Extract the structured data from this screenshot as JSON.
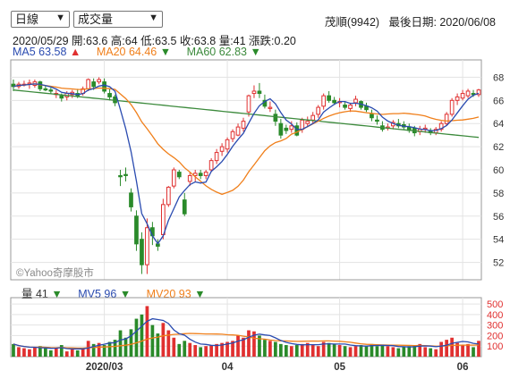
{
  "controls": {
    "period_select": "日線",
    "indicator_select": "成交量"
  },
  "header": {
    "stock": "茂順(9942)",
    "last_date_label": "最後日期: 2020/06/08",
    "quote": "2020/05/29  開:63.6  高:64  低:63.5  收:63.8  量:41  漲跌:0.20"
  },
  "ma_legend": [
    {
      "label": "MA5 63.58",
      "arrow": "▲",
      "color": "#2a4bb0",
      "arrow_color": "#e03030"
    },
    {
      "label": "MA20 64.46",
      "arrow": "▼",
      "color": "#f07f1a",
      "arrow_color": "#2a8a2a"
    },
    {
      "label": "MA60 62.83",
      "arrow": "▼",
      "color": "#3c8a3c",
      "arrow_color": "#2a8a2a"
    }
  ],
  "vol_legend": [
    {
      "label": "量 41",
      "arrow": "▼",
      "color": "#333333",
      "arrow_color": "#2a8a2a"
    },
    {
      "label": "MV5 96",
      "arrow": "▼",
      "color": "#2a4bb0",
      "arrow_color": "#2a8a2a"
    },
    {
      "label": "MV20 93",
      "arrow": "▼",
      "color": "#f07f1a",
      "arrow_color": "#2a8a2a"
    }
  ],
  "watermark": "©Yahoo奇摩股市",
  "colors": {
    "up": "#e03030",
    "down": "#2a8a2a",
    "ma5": "#2a4bb0",
    "ma20": "#f07f1a",
    "ma60": "#3c8a3c"
  },
  "chart_data": {
    "type": "candlestick",
    "price_yticks": [
      52,
      54,
      56,
      58,
      60,
      62,
      64,
      66,
      68
    ],
    "price_ylim": [
      50.5,
      69.5
    ],
    "volume_yticks": [
      100,
      200,
      300,
      400,
      500
    ],
    "volume_ylim": [
      0,
      560
    ],
    "x_labels": [
      {
        "label": "2020/03",
        "index": 17
      },
      {
        "label": "04",
        "index": 40
      },
      {
        "label": "05",
        "index": 61
      },
      {
        "label": "06",
        "index": 84
      }
    ],
    "candles": [
      [
        67.4,
        67.8,
        66.8,
        67.2,
        120
      ],
      [
        67.2,
        67.6,
        67.0,
        67.4,
        90
      ],
      [
        67.4,
        67.7,
        67.2,
        67.4,
        80
      ],
      [
        67.4,
        67.8,
        67.0,
        67.5,
        70
      ],
      [
        67.3,
        67.8,
        67.1,
        67.6,
        85
      ],
      [
        67.6,
        67.7,
        66.8,
        67.0,
        100
      ],
      [
        67.0,
        67.3,
        66.8,
        66.9,
        80
      ],
      [
        66.9,
        67.1,
        66.6,
        66.8,
        60
      ],
      [
        66.5,
        66.9,
        66.2,
        66.6,
        80
      ],
      [
        66.4,
        66.6,
        65.9,
        66.2,
        110
      ],
      [
        66.3,
        66.8,
        66.0,
        66.6,
        50
      ],
      [
        66.5,
        66.9,
        66.2,
        66.7,
        70
      ],
      [
        66.6,
        67.0,
        66.2,
        66.4,
        60
      ],
      [
        66.6,
        67.2,
        66.4,
        67.0,
        80
      ],
      [
        67.0,
        67.9,
        66.8,
        67.8,
        150
      ],
      [
        67.6,
        67.9,
        66.9,
        67.2,
        120
      ],
      [
        67.6,
        68.0,
        67.4,
        67.8,
        130
      ],
      [
        67.6,
        67.9,
        66.6,
        66.8,
        110
      ],
      [
        66.6,
        67.0,
        66.0,
        66.3,
        140
      ],
      [
        66.3,
        66.5,
        65.5,
        65.8,
        160
      ],
      [
        59.5,
        60.0,
        58.6,
        59.4,
        250
      ],
      [
        59.6,
        60.2,
        59.0,
        59.5,
        180
      ],
      [
        58.0,
        58.4,
        56.4,
        56.8,
        260
      ],
      [
        56.0,
        56.5,
        53.0,
        53.6,
        360
      ],
      [
        54.0,
        54.6,
        51.0,
        51.8,
        400
      ],
      [
        51.8,
        55.8,
        51.0,
        55.0,
        480
      ],
      [
        55.0,
        55.5,
        53.5,
        54.3,
        300
      ],
      [
        53.6,
        54.0,
        53.0,
        53.4,
        220
      ],
      [
        54.4,
        57.5,
        54.0,
        57.0,
        320
      ],
      [
        57.0,
        58.6,
        56.8,
        58.5,
        250
      ],
      [
        58.6,
        60.2,
        58.4,
        60.0,
        180
      ],
      [
        59.8,
        60.0,
        59.2,
        59.4,
        120
      ],
      [
        57.4,
        58.0,
        56.0,
        56.2,
        150
      ],
      [
        59.0,
        59.8,
        58.6,
        59.5,
        130
      ],
      [
        59.5,
        60.0,
        59.0,
        59.7,
        110
      ],
      [
        59.7,
        60.0,
        59.2,
        59.5,
        90
      ],
      [
        59.5,
        60.0,
        59.2,
        59.8,
        100
      ],
      [
        60.0,
        61.0,
        59.8,
        60.8,
        110
      ],
      [
        60.8,
        61.8,
        60.5,
        61.5,
        120
      ],
      [
        61.6,
        62.3,
        61.2,
        62.0,
        130
      ],
      [
        61.8,
        62.8,
        61.5,
        62.6,
        140
      ],
      [
        62.7,
        63.5,
        62.4,
        63.3,
        150
      ],
      [
        63.0,
        64.0,
        62.9,
        63.7,
        200
      ],
      [
        63.6,
        64.5,
        63.3,
        64.2,
        180
      ],
      [
        65.0,
        66.5,
        64.6,
        66.4,
        250
      ],
      [
        66.6,
        67.3,
        66.2,
        66.8,
        240
      ],
      [
        66.8,
        67.5,
        66.2,
        66.6,
        200
      ],
      [
        66.0,
        66.5,
        65.3,
        65.5,
        160
      ],
      [
        65.3,
        65.9,
        65.0,
        65.4,
        150
      ],
      [
        64.8,
        65.2,
        63.8,
        64.2,
        140
      ],
      [
        64.0,
        64.4,
        62.7,
        63.0,
        120
      ],
      [
        63.6,
        63.9,
        63.1,
        63.4,
        110
      ],
      [
        63.5,
        64.2,
        63.2,
        63.8,
        100
      ],
      [
        63.8,
        64.1,
        62.9,
        63.0,
        110
      ],
      [
        63.5,
        64.5,
        63.2,
        64.3,
        120
      ],
      [
        64.0,
        64.6,
        63.7,
        64.2,
        130
      ],
      [
        64.3,
        65.0,
        64.0,
        64.7,
        110
      ],
      [
        64.8,
        65.6,
        64.5,
        65.4,
        100
      ],
      [
        65.5,
        66.6,
        65.2,
        66.4,
        140
      ],
      [
        66.4,
        66.8,
        65.8,
        66.0,
        130
      ],
      [
        66.0,
        66.3,
        65.6,
        65.8,
        120
      ],
      [
        65.8,
        66.2,
        65.4,
        65.9,
        110
      ],
      [
        65.6,
        65.9,
        65.2,
        65.4,
        100
      ],
      [
        65.3,
        65.8,
        65.0,
        65.6,
        90
      ],
      [
        65.8,
        66.4,
        65.5,
        66.1,
        100
      ],
      [
        65.9,
        66.0,
        65.2,
        65.4,
        110
      ],
      [
        65.5,
        65.8,
        65.0,
        65.2,
        100
      ],
      [
        64.8,
        65.2,
        64.2,
        64.5,
        120
      ],
      [
        64.3,
        64.7,
        63.9,
        64.2,
        100
      ],
      [
        63.8,
        64.2,
        63.3,
        63.5,
        110
      ],
      [
        63.6,
        64.0,
        63.4,
        63.7,
        100
      ],
      [
        63.8,
        64.3,
        63.5,
        64.1,
        90
      ],
      [
        64.0,
        64.4,
        63.6,
        63.8,
        80
      ],
      [
        63.9,
        64.2,
        63.5,
        63.7,
        90
      ],
      [
        63.7,
        64.0,
        63.2,
        63.4,
        100
      ],
      [
        63.6,
        63.8,
        62.9,
        63.2,
        110
      ],
      [
        63.3,
        63.8,
        63.0,
        63.5,
        120
      ],
      [
        63.5,
        63.9,
        63.2,
        63.6,
        90
      ],
      [
        63.4,
        63.6,
        63.0,
        63.2,
        80
      ],
      [
        63.2,
        63.7,
        63.0,
        63.5,
        70
      ],
      [
        63.5,
        64.2,
        63.3,
        64.0,
        140
      ],
      [
        64.0,
        65.0,
        63.8,
        64.8,
        160
      ],
      [
        64.8,
        66.2,
        64.6,
        66.0,
        180
      ],
      [
        66.0,
        66.6,
        65.6,
        66.3,
        130
      ],
      [
        66.2,
        66.9,
        66.0,
        66.6,
        110
      ],
      [
        66.4,
        67.0,
        66.2,
        66.8,
        120
      ],
      [
        66.6,
        66.9,
        66.3,
        66.5,
        90
      ],
      [
        66.5,
        67.0,
        66.3,
        66.9,
        150
      ]
    ]
  }
}
